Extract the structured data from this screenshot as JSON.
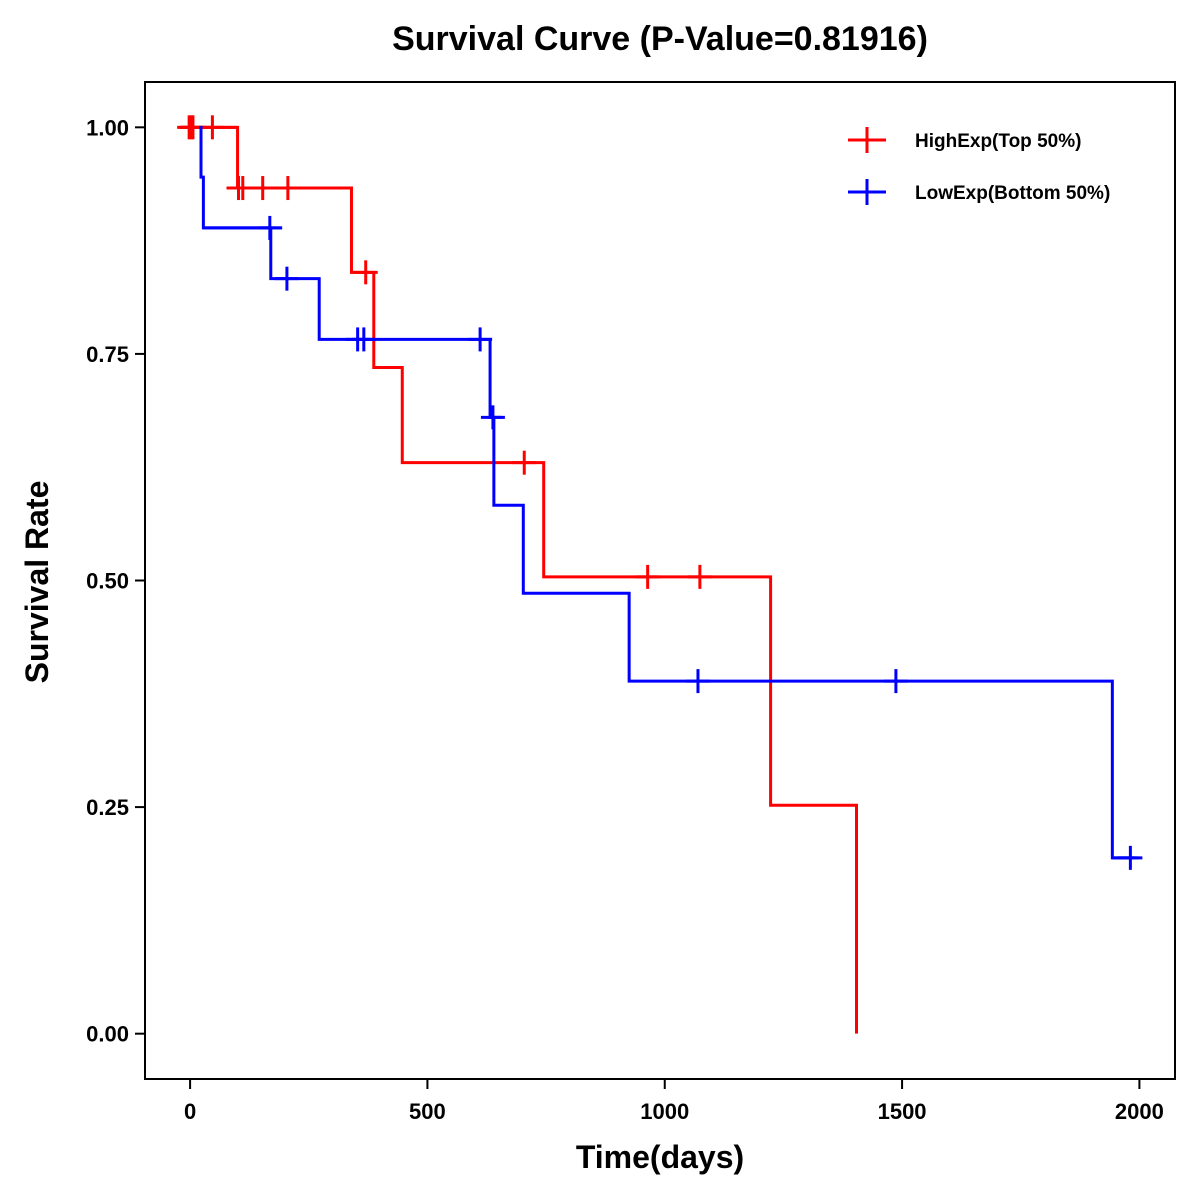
{
  "chart_data": {
    "type": "line",
    "subtype": "kaplan-meier-step",
    "title": "Survival Curve (P-Value=0.81916)",
    "xlabel": "Time(days)",
    "ylabel": "Survival Rate",
    "xlim": [
      -95,
      2075
    ],
    "ylim": [
      -0.05,
      1.05
    ],
    "xticks": [
      0,
      500,
      1000,
      1500,
      2000
    ],
    "xtick_labels": [
      "0",
      "500",
      "1000",
      "1500",
      "2000"
    ],
    "yticks": [
      0,
      0.25,
      0.5,
      0.75,
      1.0
    ],
    "ytick_labels": [
      "0.00",
      "0.25",
      "0.50",
      "0.75",
      "1.00"
    ],
    "grid": false,
    "legend_position": "top-right",
    "series": [
      {
        "name": "HighExp(Top 50%)",
        "color": "#ff0000",
        "start_time": -20,
        "end_time": 1404,
        "steps": [
          {
            "time": -20,
            "survival": 1.0
          },
          {
            "time": 100,
            "survival": 0.933
          },
          {
            "time": 340,
            "survival": 0.84
          },
          {
            "time": 387,
            "survival": 0.735
          },
          {
            "time": 447,
            "survival": 0.63
          },
          {
            "time": 745,
            "survival": 0.504
          },
          {
            "time": 1223,
            "survival": 0.252
          },
          {
            "time": 1404,
            "survival": 0.0
          }
        ],
        "censored": [
          {
            "time": -2,
            "survival": 1.0
          },
          {
            "time": 2,
            "survival": 1.0
          },
          {
            "time": 6,
            "survival": 1.0
          },
          {
            "time": 47,
            "survival": 1.0
          },
          {
            "time": 102,
            "survival": 0.933
          },
          {
            "time": 111,
            "survival": 0.933
          },
          {
            "time": 153,
            "survival": 0.933
          },
          {
            "time": 206,
            "survival": 0.933
          },
          {
            "time": 370,
            "survival": 0.84
          },
          {
            "time": 704,
            "survival": 0.63
          },
          {
            "time": 964,
            "survival": 0.504
          },
          {
            "time": 1074,
            "survival": 0.504
          }
        ],
        "tail_extensions": [
          {
            "survival": 1.0,
            "to": 100
          },
          {
            "survival": 0.933,
            "to": 232
          }
        ]
      },
      {
        "name": "LowExp(Bottom 50%)",
        "color": "#0000ff",
        "start_time": 19,
        "end_time": 1990,
        "steps": [
          {
            "time": 19,
            "survival": 1.0
          },
          {
            "time": 23,
            "survival": 0.945
          },
          {
            "time": 28,
            "survival": 0.889
          },
          {
            "time": 170,
            "survival": 0.833
          },
          {
            "time": 272,
            "survival": 0.766
          },
          {
            "time": 632,
            "survival": 0.68
          },
          {
            "time": 640,
            "survival": 0.583
          },
          {
            "time": 702,
            "survival": 0.486
          },
          {
            "time": 925,
            "survival": 0.389
          },
          {
            "time": 1943,
            "survival": 0.194
          }
        ],
        "censored": [
          {
            "time": 168,
            "survival": 0.889
          },
          {
            "time": 204,
            "survival": 0.833
          },
          {
            "time": 353,
            "survival": 0.766
          },
          {
            "time": 366,
            "survival": 0.766
          },
          {
            "time": 611,
            "survival": 0.766
          },
          {
            "time": 638,
            "survival": 0.68
          },
          {
            "time": 1070,
            "survival": 0.389
          },
          {
            "time": 1487,
            "survival": 0.389
          },
          {
            "time": 1981,
            "survival": 0.194
          }
        ],
        "tail_extensions": [
          {
            "survival": 0.889,
            "to": 194
          },
          {
            "survival": 0.68,
            "to": 657
          },
          {
            "survival": 0.194,
            "to": 1998
          }
        ]
      }
    ]
  }
}
